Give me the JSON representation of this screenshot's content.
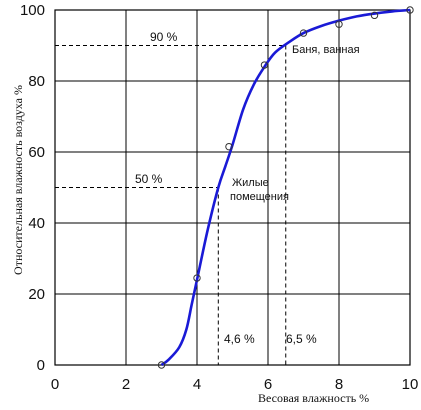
{
  "chart_data": {
    "type": "line",
    "xlabel": "Весовая влажность %",
    "ylabel": "Относительная влажность воздуха %",
    "xlim": [
      0,
      10
    ],
    "ylim": [
      0,
      100
    ],
    "xticks": [
      "0",
      "2",
      "4",
      "6",
      "8",
      "10"
    ],
    "yticks": [
      "0",
      "20",
      "40",
      "60",
      "80",
      "100"
    ],
    "grid": true,
    "series": [
      {
        "color": "#1a1ad6",
        "x": [
          3.0,
          3.2,
          3.5,
          3.7,
          3.85,
          4.0,
          4.3,
          4.6,
          4.8,
          5.0,
          5.3,
          5.6,
          5.9,
          6.2,
          6.6,
          7.0,
          7.5,
          8.0,
          8.5,
          9.0,
          9.5,
          10.0
        ],
        "y": [
          0,
          1.5,
          5,
          10,
          17,
          24,
          38,
          50,
          56,
          62,
          72,
          79,
          84,
          88,
          91,
          93.5,
          95.5,
          97,
          98.2,
          99,
          99.6,
          100
        ]
      }
    ],
    "points": {
      "x": [
        3.0,
        4.0,
        4.9,
        5.9,
        7.0,
        8.0,
        9.0,
        10.0
      ],
      "y": [
        0,
        24.5,
        61.5,
        84.5,
        93.5,
        96,
        98.5,
        100
      ]
    },
    "annotations": {
      "level_90": {
        "label": "90 %",
        "y": 90,
        "x_end": 6.5
      },
      "level_50": {
        "label": "50 %",
        "y": 50,
        "x_end": 4.6
      },
      "label_bath": "Баня, ванная",
      "label_living_1": "Жилые",
      "label_living_2": "помещения",
      "x_46": {
        "label": "4,6 %",
        "x": 4.6
      },
      "x_65": {
        "label": "6,5 %",
        "x": 6.5
      }
    }
  }
}
